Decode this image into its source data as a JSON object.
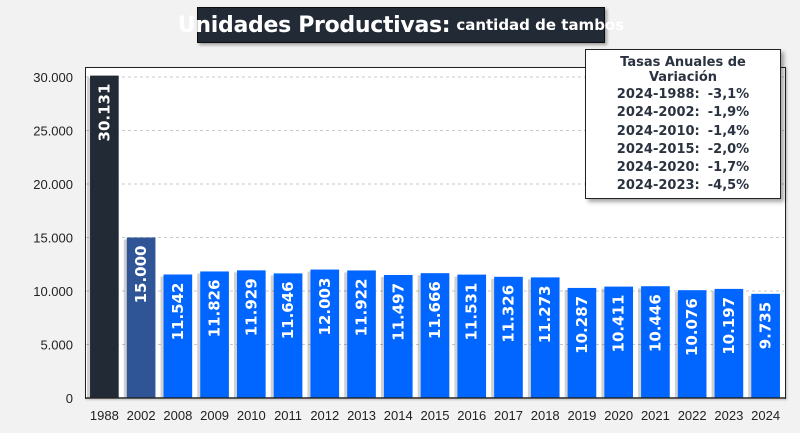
{
  "title": {
    "main": "Unidades Productivas:",
    "sub": "cantidad de tambos"
  },
  "rates_box": {
    "title": "Tasas Anuales de Variación",
    "rows": [
      {
        "period": "2024-1988:",
        "value": "-3,1%"
      },
      {
        "period": "2024-2002:",
        "value": "-1,9%"
      },
      {
        "period": "2024-2010:",
        "value": "-1,4%"
      },
      {
        "period": "2024-2015:",
        "value": "-2,0%"
      },
      {
        "period": "2024-2020:",
        "value": "-1,7%"
      },
      {
        "period": "2024-2023:",
        "value": "-4,5%"
      }
    ]
  },
  "colors": {
    "bar_1988": "#222a35",
    "bar_2002": "#2f5597",
    "bar_default": "#0066ff",
    "title_bg": "#222a35"
  },
  "chart_data": {
    "type": "bar",
    "title": "Unidades Productivas: cantidad de tambos",
    "xlabel": "",
    "ylabel": "",
    "categories": [
      "1988",
      "2002",
      "2008",
      "2009",
      "2010",
      "2011",
      "2012",
      "2013",
      "2014",
      "2015",
      "2016",
      "2017",
      "2018",
      "2019",
      "2020",
      "2021",
      "2022",
      "2023",
      "2024"
    ],
    "values": [
      30131,
      15000,
      11542,
      11826,
      11929,
      11646,
      12003,
      11922,
      11497,
      11666,
      11531,
      11326,
      11273,
      10287,
      10411,
      10446,
      10076,
      10197,
      9735
    ],
    "data_labels": [
      "30.131",
      "15.000",
      "11.542",
      "11.826",
      "11.929",
      "11.646",
      "12.003",
      "11.922",
      "11.497",
      "11.666",
      "11.531",
      "11.326",
      "11.273",
      "10.287",
      "10.411",
      "10.446",
      "10.076",
      "10.197",
      "9.735"
    ],
    "ylim": [
      0,
      30000
    ],
    "yticks": [
      0,
      5000,
      10000,
      15000,
      20000,
      25000,
      30000
    ],
    "ytick_labels": [
      "0",
      "5.000",
      "10.000",
      "15.000",
      "20.000",
      "25.000",
      "30.000"
    ],
    "grid": true,
    "legend": "none"
  }
}
